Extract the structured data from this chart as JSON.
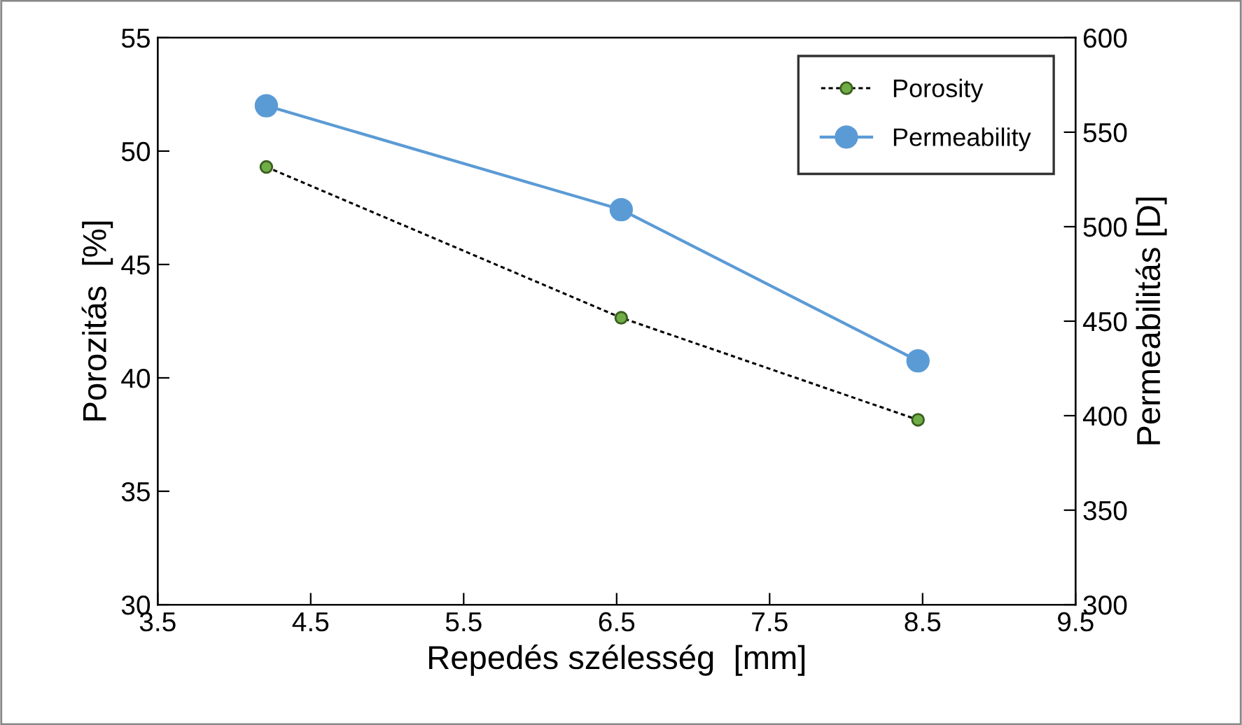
{
  "chart_data": {
    "type": "line",
    "xlabel": "Repedés szélesség  [mm]",
    "ylabel": "Porozitás  [%]",
    "y2label": "Permeabilitás [D]",
    "series": [
      {
        "name": "Porosity",
        "color": "#70ad47",
        "x": [
          4.21,
          6.53,
          8.47
        ],
        "values": [
          49.3,
          42.65,
          38.15
        ],
        "marker": "circle",
        "line_style": "dotted"
      },
      {
        "name": "Permeability",
        "color": "#5b9bd5",
        "x": [
          4.21,
          6.53,
          8.47
        ],
        "values": [
          564,
          509,
          429
        ],
        "marker": "circle",
        "line_style": "solid",
        "axis": "y2"
      }
    ],
    "xlim": [
      3.5,
      9.5
    ],
    "xticks": [
      {
        "value": 3.5,
        "label": "3.5"
      },
      {
        "value": 4.5,
        "label": "4.5"
      },
      {
        "value": 5.5,
        "label": "5.5"
      },
      {
        "value": 6.5,
        "label": "6.5"
      },
      {
        "value": 7.5,
        "label": "7.5"
      },
      {
        "value": 8.5,
        "label": "8.5"
      },
      {
        "value": 9.5,
        "label": "9.5"
      }
    ],
    "ylim": [
      30,
      55
    ],
    "yticks": [
      30,
      35,
      40,
      45,
      50,
      55
    ],
    "y2lim": [
      300,
      600
    ],
    "y2ticks": [
      300,
      350,
      400,
      450,
      500,
      550,
      600
    ],
    "grid": false,
    "legend": "top right"
  }
}
